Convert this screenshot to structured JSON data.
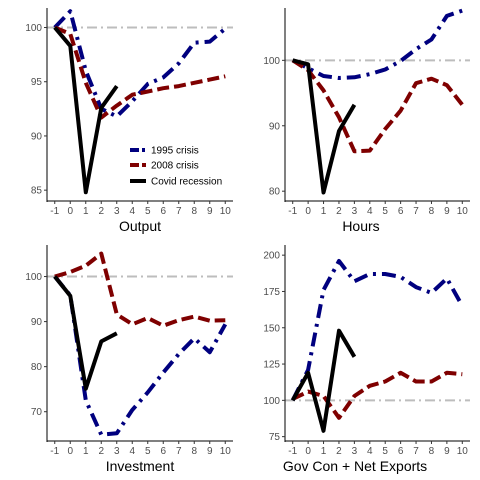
{
  "chart_data": [
    {
      "type": "line",
      "xlabel": "Output",
      "x": [
        -1,
        0,
        1,
        2,
        3,
        4,
        5,
        6,
        7,
        8,
        9,
        10
      ],
      "xticks": [
        "-1",
        "0",
        "1",
        "2",
        "3",
        "4",
        "5",
        "6",
        "7",
        "8",
        "9",
        "10"
      ],
      "yticks": [
        "85",
        "90",
        "95",
        "100"
      ],
      "ylim": [
        84,
        101.8
      ],
      "baseline": 100,
      "legend": "inside-bottom-right",
      "series": [
        {
          "name": "1995 crisis",
          "color": "#00007f",
          "style": "dash-dot",
          "values": [
            100,
            101.5,
            96,
            92.5,
            91.8,
            93.2,
            94.8,
            95.4,
            96.7,
            98.6,
            98.7,
            99.9
          ]
        },
        {
          "name": "2008 crisis",
          "color": "#7f0000",
          "style": "dashed",
          "values": [
            100,
            99.4,
            94.9,
            91.7,
            92.8,
            93.8,
            94.1,
            94.4,
            94.6,
            94.9,
            95.2,
            95.5
          ]
        },
        {
          "name": "Covid recession",
          "color": "#000000",
          "style": "solid",
          "values": [
            100,
            98.3,
            84.8,
            92.6,
            94.6,
            null,
            null,
            null,
            null,
            null,
            null,
            null
          ]
        }
      ]
    },
    {
      "type": "line",
      "xlabel": "Hours",
      "x": [
        -1,
        0,
        1,
        2,
        3,
        4,
        5,
        6,
        7,
        8,
        9,
        10
      ],
      "xticks": [
        "-1",
        "0",
        "1",
        "2",
        "3",
        "4",
        "5",
        "6",
        "7",
        "8",
        "9",
        "10"
      ],
      "yticks": [
        "80",
        "90",
        "100"
      ],
      "ylim": [
        78.5,
        108
      ],
      "baseline": 100,
      "series": [
        {
          "name": "1995 crisis",
          "color": "#00007f",
          "style": "dash-dot",
          "values": [
            100,
            98.8,
            97.6,
            97.3,
            97.4,
            97.9,
            98.6,
            99.9,
            101.7,
            103.2,
            106.8,
            107.6
          ]
        },
        {
          "name": "2008 crisis",
          "color": "#7f0000",
          "style": "dashed",
          "values": [
            100,
            98.5,
            95.4,
            91.3,
            86.1,
            86.2,
            89.5,
            92.3,
            96.5,
            97.2,
            96.2,
            93.2
          ]
        },
        {
          "name": "Covid recession",
          "color": "#000000",
          "style": "solid",
          "values": [
            100,
            99.4,
            79.8,
            89.2,
            93.2,
            null,
            null,
            null,
            null,
            null,
            null,
            null
          ]
        }
      ]
    },
    {
      "type": "line",
      "xlabel": "Investment",
      "x": [
        -1,
        0,
        1,
        2,
        3,
        4,
        5,
        6,
        7,
        8,
        9,
        10
      ],
      "xticks": [
        "-1",
        "0",
        "1",
        "2",
        "3",
        "4",
        "5",
        "6",
        "7",
        "8",
        "9",
        "10"
      ],
      "yticks": [
        "70",
        "80",
        "90",
        "100"
      ],
      "ylim": [
        63.5,
        107
      ],
      "baseline": 100,
      "series": [
        {
          "name": "1995 crisis",
          "color": "#00007f",
          "style": "dash-dot",
          "values": [
            100,
            95.8,
            72.5,
            64.9,
            65.2,
            70.4,
            74.3,
            78.7,
            82.8,
            86.3,
            83.2,
            89.4
          ]
        },
        {
          "name": "2008 crisis",
          "color": "#7f0000",
          "style": "dashed",
          "values": [
            100,
            101,
            102.4,
            105.1,
            91.6,
            89.4,
            90.8,
            89.1,
            90.3,
            91.1,
            90.2,
            90.3
          ]
        },
        {
          "name": "Covid recession",
          "color": "#000000",
          "style": "solid",
          "values": [
            100,
            95.7,
            75.1,
            85.6,
            87.4,
            null,
            null,
            null,
            null,
            null,
            null,
            null
          ]
        }
      ]
    },
    {
      "type": "line",
      "xlabel": "Gov Con + Net Exports",
      "x": [
        -1,
        0,
        1,
        2,
        3,
        4,
        5,
        6,
        7,
        8,
        9,
        10
      ],
      "xticks": [
        "-1",
        "0",
        "1",
        "2",
        "3",
        "4",
        "5",
        "6",
        "7",
        "8",
        "9",
        "10"
      ],
      "yticks": [
        "75",
        "100",
        "125",
        "150",
        "175",
        "200"
      ],
      "ylim": [
        72,
        207
      ],
      "baseline": 100,
      "series": [
        {
          "name": "1995 crisis",
          "color": "#00007f",
          "style": "dash-dot",
          "values": [
            100,
            121,
            176,
            196,
            182,
            187,
            187,
            185,
            178,
            174,
            184,
            165
          ]
        },
        {
          "name": "2008 crisis",
          "color": "#7f0000",
          "style": "dashed",
          "values": [
            101,
            106,
            103,
            88,
            103,
            110,
            113,
            119,
            113,
            113,
            119,
            118
          ]
        },
        {
          "name": "Covid recession",
          "color": "#000000",
          "style": "solid",
          "values": [
            100,
            119,
            79,
            148,
            130,
            null,
            null,
            null,
            null,
            null,
            null,
            null
          ]
        }
      ]
    }
  ]
}
